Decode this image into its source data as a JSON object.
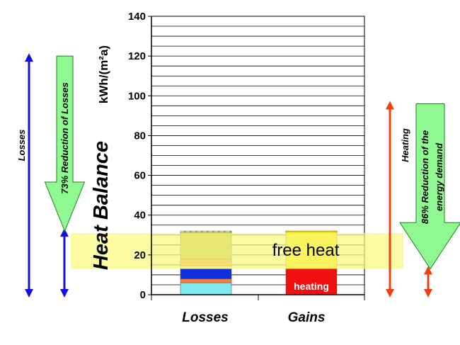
{
  "chart_data": {
    "type": "bar",
    "title": "Heat Balance",
    "ylabel": "kWh/(m²a)",
    "ylim": [
      0,
      140
    ],
    "yticks": [
      0,
      20,
      40,
      60,
      80,
      100,
      120,
      140
    ],
    "grid": true,
    "categories": [
      "Losses",
      "Gains"
    ],
    "stacks": {
      "Losses": [
        {
          "from": 0,
          "to": 6,
          "color": "#7fe8f0"
        },
        {
          "from": 6,
          "to": 8,
          "color": "#f08040"
        },
        {
          "from": 8,
          "to": 13,
          "color": "#1030e0"
        },
        {
          "from": 13,
          "to": 14.5,
          "color": "#f4f4a0"
        },
        {
          "from": 14.5,
          "to": 18,
          "color": "#e09a50"
        },
        {
          "from": 18,
          "to": 32,
          "color": "#b8b84a"
        }
      ],
      "Gains": [
        {
          "from": 0,
          "to": 13,
          "color": "#f01010",
          "label": "heating"
        },
        {
          "from": 13,
          "to": 32,
          "color": "#f8e000"
        }
      ]
    },
    "band": {
      "from": 13,
      "to": 31,
      "color": "#f8f880",
      "label": "free heat"
    },
    "annotations": {
      "losses_label": "Losses",
      "losses_range": [
        0,
        120
      ],
      "losses_reduction": "73% Reduction of Losses",
      "losses_reduction_range": [
        32,
        120
      ],
      "heating_label": "Heating",
      "heating_range": [
        0,
        96
      ],
      "heating_reduction_line1": "86% Reduction of the",
      "heating_reduction_line2": "energy demand",
      "heating_reduction_range": [
        13,
        96
      ]
    },
    "colors": {
      "losses_axis": "#1010e0",
      "heating_axis": "#f04010",
      "arrow_fill": "#90f890",
      "arrow_stroke": "#208020"
    }
  }
}
